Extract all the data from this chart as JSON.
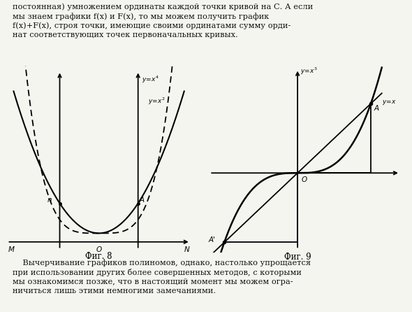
{
  "fig8_title": "Фиг. 8",
  "fig9_title": "Фиг. 9",
  "bg_color": "#f5f5f0",
  "line_color": "#000000",
  "text_color": "#111111",
  "top_text": "постоянная) умножением ординаты каждой точки кривой на С. А если\nмы знаем графики f(x) и F(x), то мы можем получить график\nf(x)+F(x), строя точки, имеющие своими ординатами сумму орди-\nнат соответствующих точек первоначальных кривых.",
  "bottom_text": "    Вычерчивание графиков полиномов, однако, настолько упрощается\nпри использовании других более совершенных методов, с которыми\nмы ознакомимся позже, что в настоящий момент мы можем огра-\nничиться лишь этими немногими замечаниями."
}
